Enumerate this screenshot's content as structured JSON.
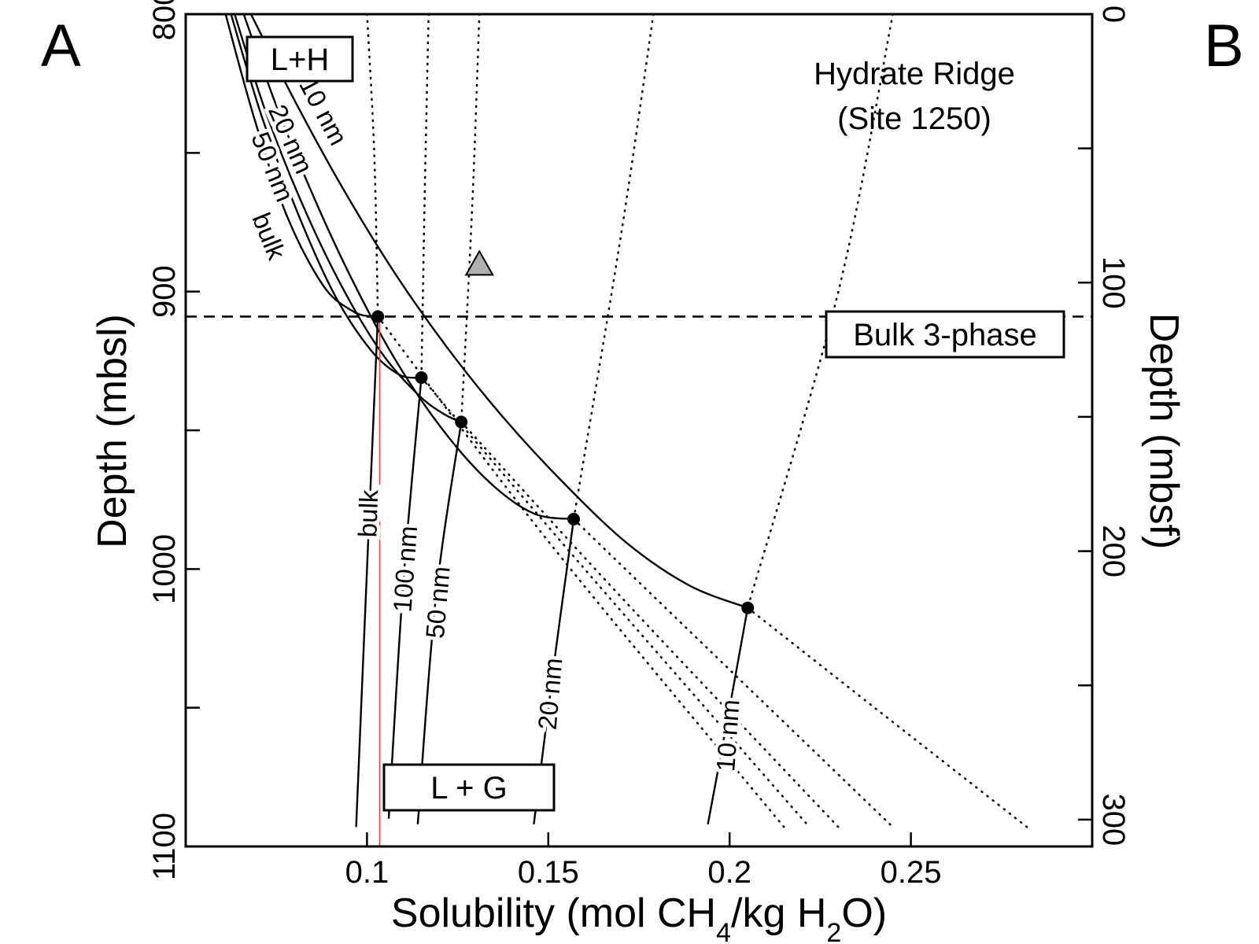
{
  "panel_labels": [
    "A",
    "B"
  ],
  "chart_data": {
    "type": "line",
    "title": "",
    "site_annotation": [
      "Hydrate Ridge",
      "(Site 1250)"
    ],
    "xlabel_parts": [
      "Solubility (mol CH",
      "4",
      "/kg H",
      "2",
      "O)"
    ],
    "ylabel_left": "Depth (mbsl)",
    "ylabel_right": "Depth (mbsf)",
    "xlim": [
      0.05,
      0.3
    ],
    "ylim_left": [
      800,
      1100
    ],
    "ylim_right": [
      0,
      310
    ],
    "x_ticks": [
      0.1,
      0.15,
      0.2,
      0.25
    ],
    "x_tick_labels": [
      "0.1",
      "0.15",
      "0.2",
      "0.25"
    ],
    "y_left_ticks": [
      800,
      850,
      900,
      950,
      1000,
      1050,
      1100
    ],
    "y_left_tick_labels": [
      "800",
      "",
      "900",
      "",
      "1000",
      "",
      "1100"
    ],
    "y_right_ticks": [
      0,
      50,
      100,
      150,
      200,
      250,
      300
    ],
    "y_right_tick_labels": [
      "0",
      "",
      "100",
      "",
      "200",
      "",
      "300"
    ],
    "three_phase_depth": 909,
    "three_phase_label": "Bulk 3-phase",
    "region_labels": {
      "hydrate_stable": "L+H",
      "gas_stable": "L + G"
    },
    "hydrate_curves": [
      {
        "label": "10 nm",
        "x": [
          0.068,
          0.08,
          0.093,
          0.107,
          0.122,
          0.138,
          0.155,
          0.172,
          0.189,
          0.205
        ],
        "y": [
          800,
          831,
          862,
          892,
          920,
          946,
          970,
          991,
          1006,
          1014
        ]
      },
      {
        "label": "20 nm",
        "x": [
          0.066,
          0.075,
          0.085,
          0.096,
          0.108,
          0.121,
          0.134,
          0.146,
          0.157
        ],
        "y": [
          800,
          833,
          865,
          896,
          925,
          950,
          969,
          980,
          982
        ]
      },
      {
        "label": "50 nm",
        "x": [
          0.0635,
          0.072,
          0.082,
          0.093,
          0.104,
          0.114,
          0.121,
          0.126
        ],
        "y": [
          800,
          835,
          868,
          898,
          922,
          937,
          944,
          947
        ]
      },
      {
        "label": "100 nm",
        "x": [
          0.0625,
          0.071,
          0.081,
          0.091,
          0.101,
          0.109,
          0.115
        ],
        "y": [
          800,
          837,
          872,
          901,
          921,
          930,
          931
        ]
      },
      {
        "label": "bulk",
        "x": [
          0.061,
          0.069,
          0.078,
          0.088,
          0.096,
          0.101,
          0.103
        ],
        "y": [
          800,
          838,
          873,
          898,
          907,
          909,
          909
        ]
      }
    ],
    "gas_curves": [
      {
        "label": "bulk",
        "x": [
          0.103,
          0.1,
          0.097
        ],
        "y": [
          909,
          1000,
          1093
        ]
      },
      {
        "label": "100 nm",
        "x": [
          0.115,
          0.11,
          0.106
        ],
        "y": [
          931,
          1005,
          1090
        ]
      },
      {
        "label": "50 nm",
        "x": [
          0.126,
          0.119,
          0.114
        ],
        "y": [
          947,
          1010,
          1092
        ]
      },
      {
        "label": "20 nm",
        "x": [
          0.157,
          0.152,
          0.146
        ],
        "y": [
          982,
          1030,
          1092
        ]
      },
      {
        "label": "10 nm",
        "x": [
          0.205,
          0.2,
          0.194
        ],
        "y": [
          1014,
          1050,
          1092
        ]
      }
    ],
    "three_phase_points": [
      {
        "label": "bulk",
        "x": 0.103,
        "y": 909
      },
      {
        "label": "100 nm",
        "x": 0.115,
        "y": 931
      },
      {
        "label": "50 nm",
        "x": 0.126,
        "y": 947
      },
      {
        "label": "20 nm",
        "x": 0.157,
        "y": 982
      },
      {
        "label": "10 nm",
        "x": 0.205,
        "y": 1014
      }
    ],
    "triangle_marker": {
      "x": 0.131,
      "y": 890
    },
    "red_reference_line_x": 0.1035,
    "colors": {
      "red_line": "#e8443a",
      "triangle_fill": "#b0b0b0"
    }
  }
}
